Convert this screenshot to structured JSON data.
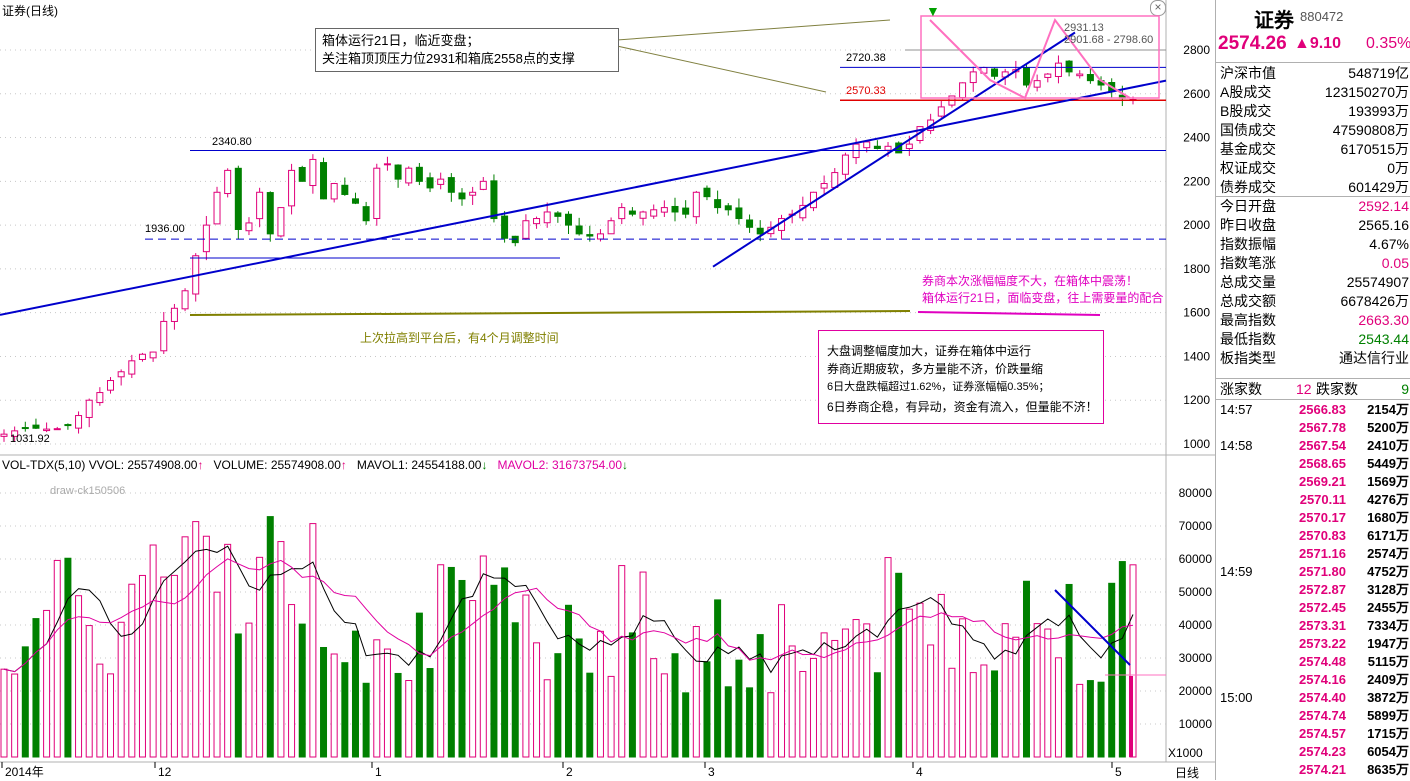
{
  "chart_title": "证券(日线)",
  "window_controls": {
    "close": "×"
  },
  "price_axis": [
    "2800",
    "2600",
    "2400",
    "2200",
    "2000",
    "1800",
    "1600",
    "1400",
    "1200",
    "1000"
  ],
  "volume_axis": [
    "80000",
    "70000",
    "60000",
    "50000",
    "40000",
    "30000",
    "20000",
    "10000"
  ],
  "volume_unit": "X1000",
  "time_axis": [
    "2014年",
    "12",
    "1",
    "2",
    "3",
    "4",
    "5"
  ],
  "period_tab": "日线",
  "indicator_bar": {
    "name": "VOL-TDX(5,10)",
    "vvol": "VVOL: 25574908.00",
    "volume": "VOLUME: 25574908.00",
    "mavol1": "MAVOL1: 24554188.00",
    "mavol2": "MAVOL2: 31673754.00"
  },
  "draw_tag": "draw-ck150506",
  "price_labels": {
    "low": "1031.92",
    "h2340": "2340.80",
    "h1936": "1936.00",
    "h2720": "2720.38",
    "h2570": "2570.33",
    "h2931": "2931.13",
    "h2901": "2901.68 - 2798.60"
  },
  "annotations": {
    "box_note_line1": "箱体运行21日，临近变盘；",
    "box_note_line2": "关注箱顶顶压力位2931和箱底2558点的支撑",
    "platform_note": "上次拉高到平台后，有4个月调整时间",
    "broker_note_line1": "券商本次涨幅幅度不大，在箱体中震荡！",
    "broker_note_line2": "箱体运行21日，面临变盘，往上需要量的配合",
    "market_note_line1": "大盘调整幅度加大，证券在箱体中运行",
    "market_note_line2": "券商近期疲软，多方量能不济，价跌量缩",
    "market_note_line3": "6日大盘跌幅超过1.62%，证券涨幅幅0.35%；",
    "market_note_line4": "6日券商企稳，有异动，资金有流入，但量能不济！"
  },
  "quote": {
    "name": "证券",
    "code": "880472",
    "price": "2574.26",
    "change": "▲9.10",
    "pct": "0.35%",
    "rows": [
      {
        "label": "沪深市值",
        "value": "548719亿",
        "color": "#000000"
      },
      {
        "label": "A股成交",
        "value": "123150270万",
        "color": "#000000"
      },
      {
        "label": "B股成交",
        "value": "193993万",
        "color": "#000000"
      },
      {
        "label": "国债成交",
        "value": "47590808万",
        "color": "#000000"
      },
      {
        "label": "基金成交",
        "value": "6170515万",
        "color": "#000000"
      },
      {
        "label": "权证成交",
        "value": "0万",
        "color": "#000000"
      },
      {
        "label": "债券成交",
        "value": "601429万",
        "color": "#000000"
      },
      {
        "label": "今日开盘",
        "value": "2592.14",
        "color": "#e0007a"
      },
      {
        "label": "昨日收盘",
        "value": "2565.16",
        "color": "#000000"
      },
      {
        "label": "指数振幅",
        "value": "4.67%",
        "color": "#000000"
      },
      {
        "label": "指数笔涨",
        "value": "0.05",
        "color": "#e0007a"
      },
      {
        "label": "总成交量",
        "value": "25574907",
        "color": "#000000"
      },
      {
        "label": "总成交额",
        "value": "6678426万",
        "color": "#000000"
      },
      {
        "label": "最高指数",
        "value": "2663.30",
        "color": "#e0007a"
      },
      {
        "label": "最低指数",
        "value": "2543.44",
        "color": "#008000"
      },
      {
        "label": "板指类型",
        "value": "通达信行业",
        "color": "#000000"
      }
    ],
    "rise_label": "涨家数",
    "rise_value": "12",
    "fall_label": "跌家数",
    "fall_value": "9"
  },
  "ticks": [
    {
      "time": "14:57",
      "price": "2566.83",
      "vol": "2154万"
    },
    {
      "time": "",
      "price": "2567.78",
      "vol": "5200万"
    },
    {
      "time": "14:58",
      "price": "2567.54",
      "vol": "2410万"
    },
    {
      "time": "",
      "price": "2568.65",
      "vol": "5449万"
    },
    {
      "time": "",
      "price": "2569.21",
      "vol": "1569万"
    },
    {
      "time": "",
      "price": "2570.11",
      "vol": "4276万"
    },
    {
      "time": "",
      "price": "2570.17",
      "vol": "1680万"
    },
    {
      "time": "",
      "price": "2570.83",
      "vol": "6171万"
    },
    {
      "time": "",
      "price": "2571.16",
      "vol": "2574万"
    },
    {
      "time": "14:59",
      "price": "2571.80",
      "vol": "4752万"
    },
    {
      "time": "",
      "price": "2572.87",
      "vol": "3128万"
    },
    {
      "time": "",
      "price": "2572.45",
      "vol": "2455万"
    },
    {
      "time": "",
      "price": "2573.31",
      "vol": "7334万"
    },
    {
      "time": "",
      "price": "2573.22",
      "vol": "1947万"
    },
    {
      "time": "",
      "price": "2574.48",
      "vol": "5115万"
    },
    {
      "time": "",
      "price": "2574.16",
      "vol": "2409万"
    },
    {
      "time": "15:00",
      "price": "2574.40",
      "vol": "3872万"
    },
    {
      "time": "",
      "price": "2574.74",
      "vol": "5899万"
    },
    {
      "time": "",
      "price": "2574.57",
      "vol": "1715万"
    },
    {
      "time": "",
      "price": "2574.23",
      "vol": "6054万"
    },
    {
      "time": "",
      "price": "2574.21",
      "vol": "8635万"
    }
  ],
  "colors": {
    "up": "#e0007a",
    "down": "#008000",
    "trend": "#0000cc",
    "box": "#ff70c0",
    "ma5": "#000000",
    "ma10": "#e000a0"
  },
  "chart_data": [
    {
      "type": "candlestick",
      "title": "证券(日线)",
      "ylim": [
        1000,
        2900
      ],
      "x_ticks": [
        "2014年",
        "12",
        "1",
        "2",
        "3",
        "4",
        "5"
      ],
      "reference_lines": [
        2720.38,
        2570.33,
        2340.8,
        1936.0
      ],
      "labels": [
        "1031.92",
        "2340.80",
        "1936.00",
        "2720.38",
        "2570.33",
        "2931.13",
        "2901.68 - 2798.60"
      ]
    },
    {
      "type": "bar",
      "title": "VOL-TDX(5,10)",
      "ylim": [
        0,
        85000
      ],
      "unit": "X1000",
      "series": [
        {
          "name": "VOLUME",
          "values": []
        },
        {
          "name": "MAVOL1",
          "values": []
        },
        {
          "name": "MAVOL2",
          "values": []
        }
      ]
    }
  ]
}
